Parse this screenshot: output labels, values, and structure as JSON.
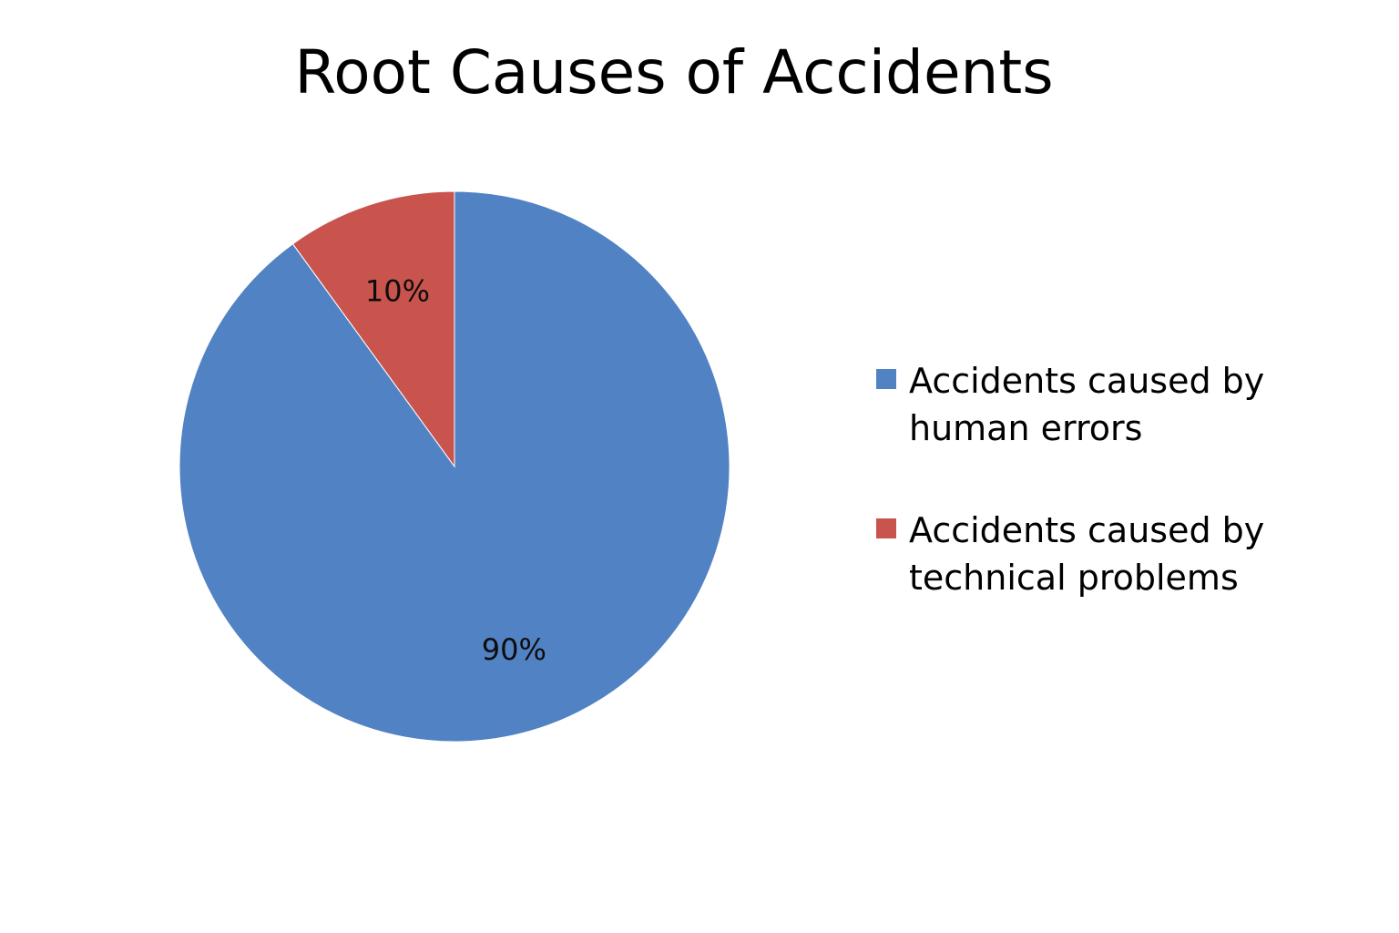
{
  "chart_data": {
    "type": "pie",
    "title": "Root Causes of Accidents",
    "categories": [
      "Accidents caused by human errors",
      "Accidents caused by technical problems"
    ],
    "values": [
      90,
      10
    ],
    "data_labels": [
      "90%",
      "10%"
    ],
    "colors": [
      "#5182C3",
      "#C9544E"
    ],
    "legend_position": "right",
    "start_angle": "12 o'clock",
    "direction": "clockwise"
  }
}
